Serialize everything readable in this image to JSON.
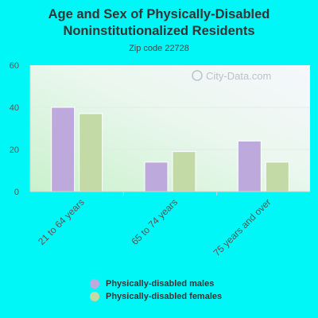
{
  "chart_data": {
    "type": "bar",
    "title_line1": "Age and Sex of Physically-Disabled",
    "title_line2": "Noninstitutionalized Residents",
    "subtitle": "Zip code 22728",
    "watermark": "City-Data.com",
    "categories": [
      "21 to 64 years",
      "65 to 74 years",
      "75 years and over"
    ],
    "series": [
      {
        "name": "Physically-disabled males",
        "color": "#bea9dc",
        "values": [
          40,
          14,
          24
        ]
      },
      {
        "name": "Physically-disabled females",
        "color": "#c3d9a6",
        "values": [
          37,
          19,
          14
        ]
      }
    ],
    "yticks": [
      0,
      20,
      40,
      60
    ],
    "ylim": [
      0,
      60
    ],
    "grid": true,
    "legend_position": "bottom"
  }
}
